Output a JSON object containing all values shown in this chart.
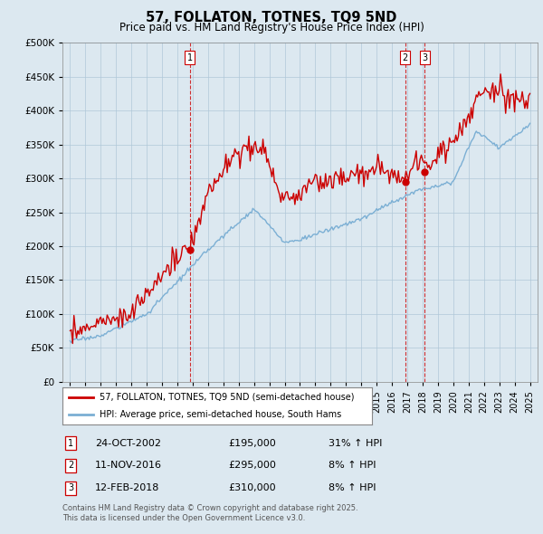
{
  "title": "57, FOLLATON, TOTNES, TQ9 5ND",
  "subtitle": "Price paid vs. HM Land Registry's House Price Index (HPI)",
  "legend_line1": "57, FOLLATON, TOTNES, TQ9 5ND (semi-detached house)",
  "legend_line2": "HPI: Average price, semi-detached house, South Hams",
  "transactions": [
    {
      "label": "1",
      "date": "24-OCT-2002",
      "price": 195000,
      "pct": "31%",
      "dir": "↑",
      "x_year": 2002.81
    },
    {
      "label": "2",
      "date": "11-NOV-2016",
      "price": 295000,
      "pct": "8%",
      "dir": "↑",
      "x_year": 2016.87
    },
    {
      "label": "3",
      "date": "12-FEB-2018",
      "price": 310000,
      "pct": "8%",
      "dir": "↑",
      "x_year": 2018.12
    }
  ],
  "footnote1": "Contains HM Land Registry data © Crown copyright and database right 2025.",
  "footnote2": "This data is licensed under the Open Government Licence v3.0.",
  "hpi_color": "#7bafd4",
  "price_color": "#cc0000",
  "marker_color": "#cc0000",
  "vline_color": "#cc0000",
  "background_color": "#dce8f0",
  "plot_background": "#dce8f0",
  "grid_color": "#b0c8d8",
  "ylim": [
    0,
    500000
  ],
  "yticks": [
    0,
    50000,
    100000,
    150000,
    200000,
    250000,
    300000,
    350000,
    400000,
    450000,
    500000
  ],
  "xlim": [
    1994.5,
    2025.5
  ],
  "xticks": [
    1995,
    1996,
    1997,
    1998,
    1999,
    2000,
    2001,
    2002,
    2003,
    2004,
    2005,
    2006,
    2007,
    2008,
    2009,
    2010,
    2011,
    2012,
    2013,
    2014,
    2015,
    2016,
    2017,
    2018,
    2019,
    2020,
    2021,
    2022,
    2023,
    2024,
    2025
  ]
}
